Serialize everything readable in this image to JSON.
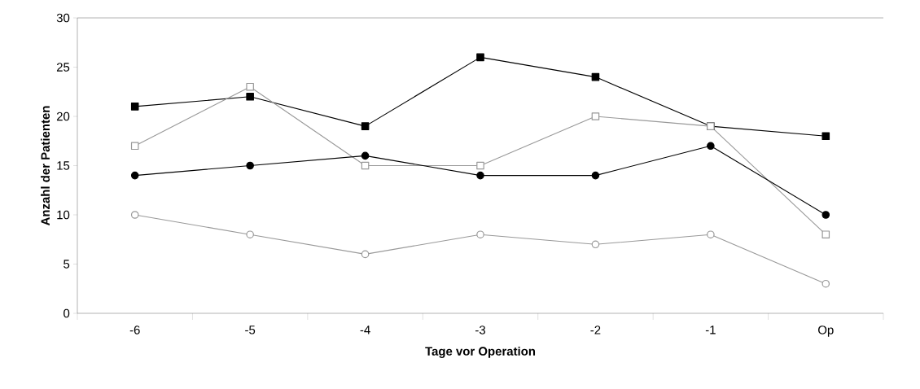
{
  "chart_data": {
    "type": "line",
    "xlabel": "Tage vor Operation",
    "ylabel": "Anzahl der Patienten",
    "categories": [
      "-6",
      "-5",
      "-4",
      "-3",
      "-2",
      "-1",
      "Op"
    ],
    "series": [
      {
        "color": "#000000",
        "marker": "square",
        "values": [
          21,
          22,
          19,
          26,
          24,
          19,
          18
        ]
      },
      {
        "color": "#999999",
        "marker": "square",
        "values": [
          17,
          23,
          15,
          15,
          20,
          19,
          8
        ]
      },
      {
        "color": "#000000",
        "marker": "circle",
        "values": [
          14,
          15,
          16,
          14,
          14,
          17,
          10
        ]
      },
      {
        "color": "#999999",
        "marker": "circle",
        "values": [
          10,
          8,
          6,
          8,
          7,
          8,
          3
        ]
      }
    ],
    "ylim": [
      0,
      30
    ],
    "yticks": [
      0,
      5,
      10,
      15,
      20,
      25,
      30
    ],
    "grid": false,
    "line_style": "solid"
  }
}
